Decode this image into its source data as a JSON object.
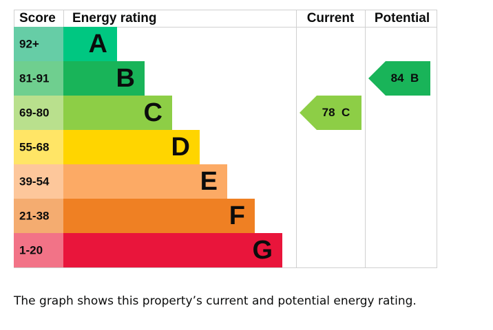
{
  "headers": {
    "score": "Score",
    "rating": "Energy rating",
    "current": "Current",
    "potential": "Potential"
  },
  "bands": [
    {
      "score": "92+",
      "letter": "A",
      "color": "#00c781",
      "score_color": "#66cda6"
    },
    {
      "score": "81-91",
      "letter": "B",
      "color": "#19b459",
      "score_color": "#6fcf8f"
    },
    {
      "score": "69-80",
      "letter": "C",
      "color": "#8dce46",
      "score_color": "#b9e08d"
    },
    {
      "score": "55-68",
      "letter": "D",
      "color": "#ffd500",
      "score_color": "#ffe566"
    },
    {
      "score": "39-54",
      "letter": "E",
      "color": "#fcaa65",
      "score_color": "#fdc79b"
    },
    {
      "score": "21-38",
      "letter": "F",
      "color": "#ef8023",
      "score_color": "#f4ac70"
    },
    {
      "score": "1-20",
      "letter": "G",
      "color": "#e9153b",
      "score_color": "#f27387"
    }
  ],
  "current": {
    "value": 78,
    "letter": "C"
  },
  "potential": {
    "value": 84,
    "letter": "B"
  },
  "caption": "The graph shows this property’s current and potential energy rating."
}
